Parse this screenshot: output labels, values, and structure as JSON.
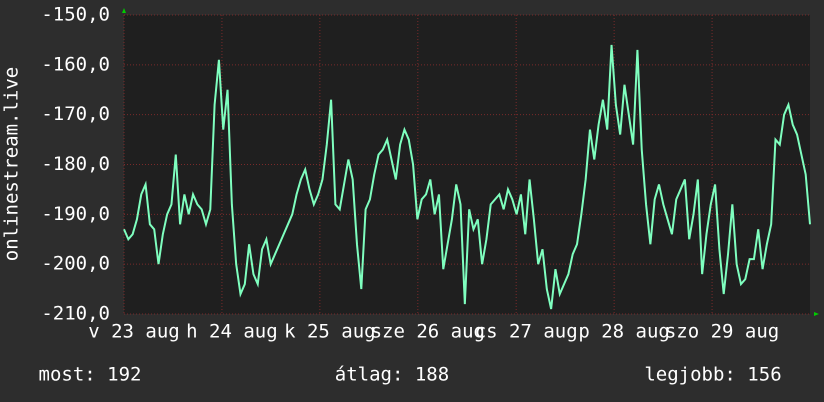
{
  "chart_data": {
    "type": "line",
    "ylabel": "onlinestream.live",
    "series": [
      {
        "name": "onlinestream.live",
        "color": "#7fffbf",
        "values": [
          -193,
          -195,
          -194,
          -191,
          -186,
          -184,
          -192,
          -193,
          -200,
          -194,
          -190,
          -188,
          -178,
          -192,
          -186,
          -190,
          -186,
          -188,
          -189,
          -192,
          -189,
          -168,
          -159,
          -173,
          -165,
          -188,
          -200,
          -206,
          -204,
          -196,
          -202,
          -204,
          -197,
          -195,
          -200,
          -198,
          -196,
          -194,
          -192,
          -190,
          -186,
          -183,
          -181,
          -185,
          -188,
          -186,
          -183,
          -176,
          -167,
          -188,
          -189,
          -184,
          -179,
          -183,
          -196,
          -205,
          -189,
          -187,
          -182,
          -178,
          -177,
          -175,
          -179,
          -183,
          -176,
          -173,
          -175,
          -180,
          -191,
          -187,
          -186,
          -183,
          -190,
          -186,
          -201,
          -196,
          -191,
          -184,
          -188,
          -208,
          -189,
          -193,
          -191,
          -200,
          -195,
          -188,
          -187,
          -186,
          -189,
          -185,
          -187,
          -190,
          -186,
          -194,
          -183,
          -191,
          -200,
          -197,
          -205,
          -209,
          -201,
          -206,
          -204,
          -202,
          -198,
          -196,
          -190,
          -183,
          -173,
          -179,
          -172,
          -167,
          -173,
          -156,
          -168,
          -174,
          -164,
          -170,
          -176,
          -157,
          -177,
          -188,
          -196,
          -187,
          -184,
          -188,
          -191,
          -194,
          -187,
          -185,
          -183,
          -195,
          -190,
          -183,
          -202,
          -194,
          -188,
          -184,
          -197,
          -206,
          -198,
          -188,
          -200,
          -204,
          -203,
          -199,
          -199,
          -193,
          -201,
          -196,
          -192,
          -175,
          -176,
          -170,
          -168,
          -172,
          -174,
          -178,
          -182,
          -192
        ]
      }
    ],
    "xlim": [
      0,
      159
    ],
    "xticks": [
      {
        "value": 0,
        "label": "v 23 aug"
      },
      {
        "value": 22.7,
        "label": "h 24 aug"
      },
      {
        "value": 45.4,
        "label": "k 25 aug"
      },
      {
        "value": 68.1,
        "label": "sze 26 aug"
      },
      {
        "value": 90.9,
        "label": "cs 27 aug"
      },
      {
        "value": 113.6,
        "label": "p 28 aug"
      },
      {
        "value": 136.3,
        "label": "szo 29 aug"
      }
    ],
    "ylim": [
      -210,
      -150
    ],
    "yticks": [
      {
        "value": -210,
        "label": "-210,0"
      },
      {
        "value": -200,
        "label": "-200,0"
      },
      {
        "value": -190,
        "label": "-190,0"
      },
      {
        "value": -180,
        "label": "-180,0"
      },
      {
        "value": -170,
        "label": "-170,0"
      },
      {
        "value": -160,
        "label": "-160,0"
      },
      {
        "value": -150,
        "label": "-150,0"
      }
    ],
    "grid": true,
    "stats": [
      "most: 192",
      "átlag: 188",
      "legjobb: 156"
    ]
  }
}
